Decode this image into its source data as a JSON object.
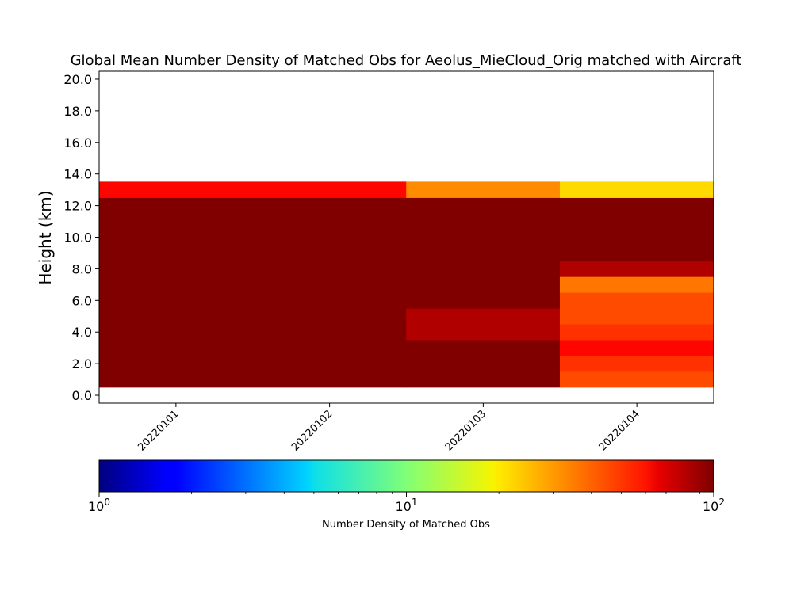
{
  "chart_data": {
    "type": "heatmap",
    "title": "Global Mean Number Density of Matched Obs for Aeolus_MieCloud_Orig matched with Aircraft",
    "xlabel": "",
    "ylabel": "Height (km)",
    "x_categories": [
      "20220101",
      "20220102",
      "20220103",
      "20220104"
    ],
    "y_ticks": [
      "0.0",
      "2.0",
      "4.0",
      "6.0",
      "8.0",
      "10.0",
      "12.0",
      "14.0",
      "16.0",
      "18.0",
      "20.0"
    ],
    "ylim": [
      -0.5,
      20.5
    ],
    "colorbar": {
      "label": "Number Density of Matched Obs",
      "scale": "log",
      "colormap": "jet",
      "range": [
        1,
        100
      ],
      "tick_values": [
        1,
        10,
        100
      ]
    },
    "cells": [
      {
        "x_start": 0,
        "x_end": 2,
        "y_low": 0.5,
        "y_high": 12.5,
        "value": 100
      },
      {
        "x_start": 0,
        "x_end": 2,
        "y_low": 12.5,
        "y_high": 13.5,
        "value": 55
      },
      {
        "x_start": 2,
        "x_end": 3,
        "y_low": 0.5,
        "y_high": 3.5,
        "value": 100
      },
      {
        "x_start": 2,
        "x_end": 3,
        "y_low": 3.5,
        "y_high": 5.5,
        "value": 80
      },
      {
        "x_start": 2,
        "x_end": 3,
        "y_low": 5.5,
        "y_high": 12.5,
        "value": 100
      },
      {
        "x_start": 2,
        "x_end": 3,
        "y_low": 12.5,
        "y_high": 13.5,
        "value": 30
      },
      {
        "x_start": 3,
        "x_end": 4,
        "y_low": 0.5,
        "y_high": 1.5,
        "value": 40
      },
      {
        "x_start": 3,
        "x_end": 4,
        "y_low": 1.5,
        "y_high": 2.5,
        "value": 45
      },
      {
        "x_start": 3,
        "x_end": 4,
        "y_low": 2.5,
        "y_high": 3.5,
        "value": 55
      },
      {
        "x_start": 3,
        "x_end": 4,
        "y_low": 3.5,
        "y_high": 4.5,
        "value": 45
      },
      {
        "x_start": 3,
        "x_end": 4,
        "y_low": 4.5,
        "y_high": 6.5,
        "value": 40
      },
      {
        "x_start": 3,
        "x_end": 4,
        "y_low": 6.5,
        "y_high": 7.5,
        "value": 33
      },
      {
        "x_start": 3,
        "x_end": 4,
        "y_low": 7.5,
        "y_high": 8.5,
        "value": 80
      },
      {
        "x_start": 3,
        "x_end": 4,
        "y_low": 8.5,
        "y_high": 12.5,
        "value": 100
      },
      {
        "x_start": 3,
        "x_end": 4,
        "y_low": 12.5,
        "y_high": 13.5,
        "value": 21
      }
    ]
  }
}
